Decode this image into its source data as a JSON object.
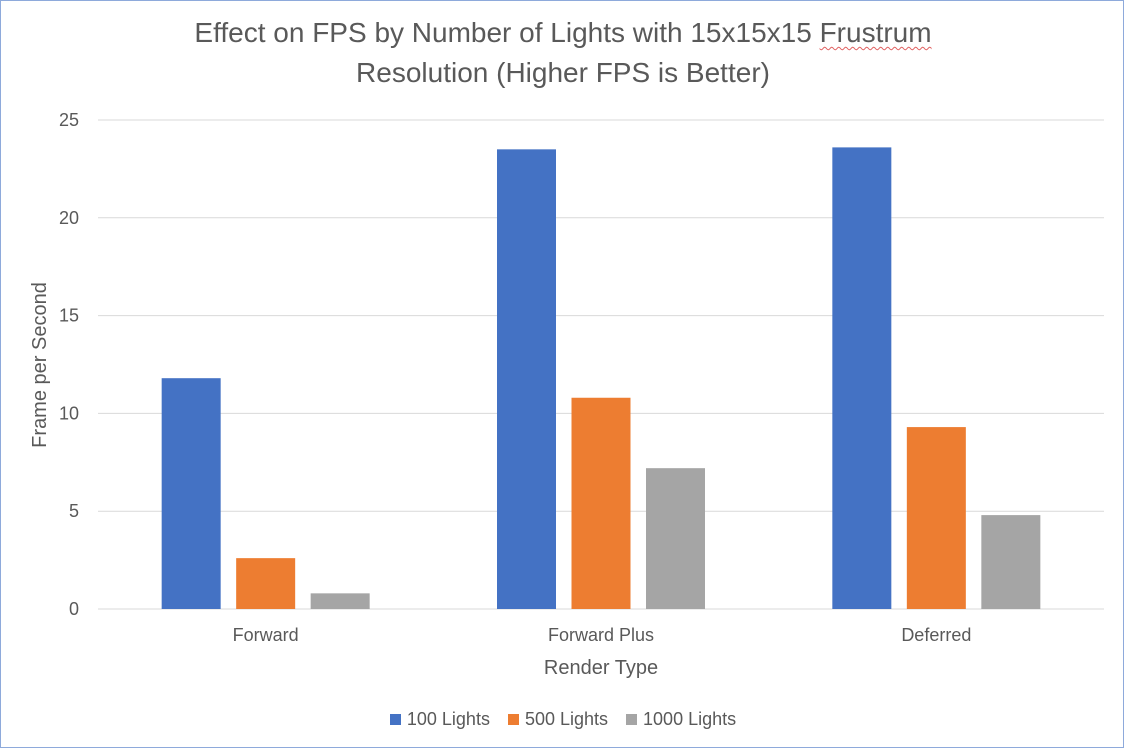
{
  "chart_data": {
    "type": "bar",
    "title_line1": "Effect on FPS by Number of Lights with 15x15x15",
    "title_line1_flagged": "Frustrum",
    "title_line2": "Resolution (Higher FPS is Better)",
    "xlabel": "Render Type",
    "ylabel": "Frame per Second",
    "categories": [
      "Forward",
      "Forward Plus",
      "Deferred"
    ],
    "series": [
      {
        "name": "100 Lights",
        "color": "#4472c4",
        "values": [
          11.8,
          23.5,
          23.6
        ]
      },
      {
        "name": "500 Lights",
        "color": "#ed7d31",
        "values": [
          2.6,
          10.8,
          9.3
        ]
      },
      {
        "name": "1000 Lights",
        "color": "#a5a5a5",
        "values": [
          0.8,
          7.2,
          4.8
        ]
      }
    ],
    "ylim": [
      0,
      25
    ],
    "yticks": [
      0,
      5,
      10,
      15,
      20,
      25
    ],
    "grid": true,
    "legend_position": "bottom"
  }
}
